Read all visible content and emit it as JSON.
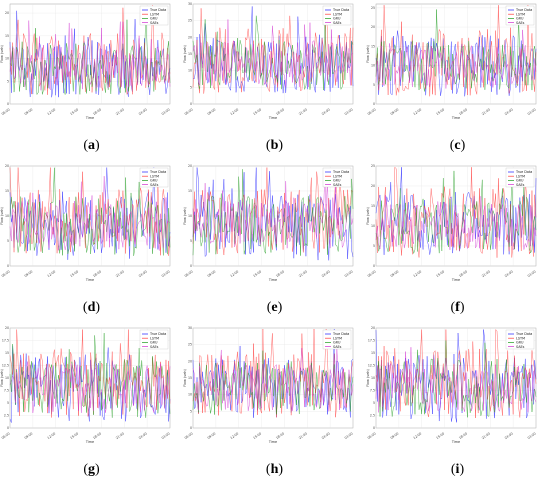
{
  "figure": {
    "panels": [
      {
        "caption_letter": "a",
        "legend": [
          "True Data",
          "LSTM",
          "GRU",
          "SAEs"
        ]
      },
      {
        "caption_letter": "b",
        "legend": [
          "True Data",
          "LSTM",
          "GRU",
          "SAEs"
        ]
      },
      {
        "caption_letter": "c",
        "legend": [
          "True Data",
          "LSTM",
          "GRU",
          "SAEs"
        ]
      },
      {
        "caption_letter": "d",
        "legend": [
          "True Data",
          "LSTM",
          "GRU",
          "SAEs"
        ]
      },
      {
        "caption_letter": "e",
        "legend": [
          "True Data",
          "LSTM",
          "GRU",
          "SAEs"
        ]
      },
      {
        "caption_letter": "f",
        "legend": [
          "True Data",
          "LSTM",
          "GRU",
          "SAEs"
        ]
      },
      {
        "caption_letter": "g",
        "legend": [
          "True Data",
          "LSTM",
          "GRU",
          "SAEs"
        ]
      },
      {
        "caption_letter": "h",
        "legend": [
          "True Data",
          "LSTM",
          "GRU",
          "SAEs"
        ]
      },
      {
        "caption_letter": "i",
        "legend": [
          "True Data",
          "LSTM",
          "GRU",
          "SAEs"
        ]
      }
    ]
  },
  "chart_data": [
    {
      "type": "line",
      "panel": "a",
      "xlabel": "Time",
      "ylabel": "Flow (veh)",
      "grid": true,
      "legend_position": "top-right",
      "x_tick_labels": [
        "06:00",
        "09:00",
        "12:00",
        "15:00",
        "18:00",
        "21:00",
        "24:00",
        "03:00"
      ],
      "y_ticks": [
        0,
        5,
        10,
        15,
        20
      ],
      "ylim": [
        0,
        22
      ],
      "series": [
        {
          "name": "True Data",
          "color": "#1f1fff",
          "seed": 11,
          "base": 8,
          "amp": 7
        },
        {
          "name": "LSTM",
          "color": "#ff3a3a",
          "seed": 12,
          "base": 9,
          "amp": 7
        },
        {
          "name": "GRU",
          "color": "#1a9a1a",
          "seed": 13,
          "base": 8,
          "amp": 6
        },
        {
          "name": "SAEs",
          "color": "#d030d0",
          "seed": 14,
          "base": 8,
          "amp": 5
        }
      ]
    },
    {
      "type": "line",
      "panel": "b",
      "xlabel": "Time",
      "ylabel": "Flow (veh)",
      "grid": true,
      "legend_position": "top-right",
      "x_tick_labels": [
        "06:00",
        "09:00",
        "12:00",
        "15:00",
        "18:00",
        "21:00",
        "24:00",
        "03:00"
      ],
      "y_ticks": [
        0,
        5,
        10,
        15,
        20,
        25,
        30
      ],
      "ylim": [
        0,
        30
      ],
      "series": [
        {
          "name": "True Data",
          "color": "#1f1fff",
          "seed": 21,
          "base": 12,
          "amp": 9
        },
        {
          "name": "LSTM",
          "color": "#ff3a3a",
          "seed": 22,
          "base": 13,
          "amp": 10
        },
        {
          "name": "GRU",
          "color": "#1a9a1a",
          "seed": 23,
          "base": 12,
          "amp": 8
        },
        {
          "name": "SAEs",
          "color": "#d030d0",
          "seed": 24,
          "base": 12,
          "amp": 7
        }
      ]
    },
    {
      "type": "line",
      "panel": "c",
      "xlabel": "Time",
      "ylabel": "Flow (veh)",
      "grid": true,
      "legend_position": "top-right",
      "x_tick_labels": [
        "06:00",
        "09:00",
        "12:00",
        "15:00",
        "18:00",
        "21:00",
        "24:00",
        "03:00"
      ],
      "y_ticks": [
        0,
        5,
        10,
        15,
        20,
        25
      ],
      "ylim": [
        0,
        26
      ],
      "series": [
        {
          "name": "True Data",
          "color": "#1f1fff",
          "seed": 31,
          "base": 10,
          "amp": 8
        },
        {
          "name": "LSTM",
          "color": "#ff3a3a",
          "seed": 32,
          "base": 11,
          "amp": 9
        },
        {
          "name": "GRU",
          "color": "#1a9a1a",
          "seed": 33,
          "base": 10,
          "amp": 7
        },
        {
          "name": "SAEs",
          "color": "#d030d0",
          "seed": 34,
          "base": 10,
          "amp": 6
        }
      ]
    },
    {
      "type": "line",
      "panel": "d",
      "xlabel": "Time",
      "ylabel": "Flow (veh)",
      "grid": true,
      "legend_position": "top-right",
      "x_tick_labels": [
        "06:00",
        "09:00",
        "12:00",
        "15:00",
        "18:00",
        "21:00",
        "24:00",
        "03:00"
      ],
      "y_ticks": [
        0,
        5,
        10,
        15,
        20
      ],
      "ylim": [
        0,
        20
      ],
      "series": [
        {
          "name": "True Data",
          "color": "#1f1fff",
          "seed": 41,
          "base": 8,
          "amp": 7
        },
        {
          "name": "LSTM",
          "color": "#ff3a3a",
          "seed": 42,
          "base": 9,
          "amp": 7
        },
        {
          "name": "GRU",
          "color": "#1a9a1a",
          "seed": 43,
          "base": 8,
          "amp": 6
        },
        {
          "name": "SAEs",
          "color": "#d030d0",
          "seed": 44,
          "base": 8,
          "amp": 5
        }
      ]
    },
    {
      "type": "line",
      "panel": "e",
      "xlabel": "Time",
      "ylabel": "Flow (veh)",
      "grid": true,
      "legend_position": "top-right",
      "x_tick_labels": [
        "06:00",
        "09:00",
        "12:00",
        "15:00",
        "18:00",
        "21:00",
        "24:00",
        "03:00"
      ],
      "y_ticks": [
        0,
        5,
        10,
        15,
        20
      ],
      "ylim": [
        0,
        20
      ],
      "series": [
        {
          "name": "True Data",
          "color": "#1f1fff",
          "seed": 51,
          "base": 8,
          "amp": 7
        },
        {
          "name": "LSTM",
          "color": "#ff3a3a",
          "seed": 52,
          "base": 9,
          "amp": 7
        },
        {
          "name": "GRU",
          "color": "#1a9a1a",
          "seed": 53,
          "base": 8,
          "amp": 6
        },
        {
          "name": "SAEs",
          "color": "#d030d0",
          "seed": 54,
          "base": 8,
          "amp": 5
        }
      ]
    },
    {
      "type": "line",
      "panel": "f",
      "xlabel": "Time",
      "ylabel": "Flow (veh)",
      "grid": true,
      "legend_position": "top-right",
      "x_tick_labels": [
        "06:00",
        "09:00",
        "12:00",
        "15:00",
        "18:00",
        "21:00",
        "24:00",
        "03:00"
      ],
      "y_ticks": [
        0,
        5,
        10,
        15,
        20,
        25
      ],
      "ylim": [
        0,
        25
      ],
      "series": [
        {
          "name": "True Data",
          "color": "#1f1fff",
          "seed": 61,
          "base": 10,
          "amp": 8
        },
        {
          "name": "LSTM",
          "color": "#ff3a3a",
          "seed": 62,
          "base": 11,
          "amp": 9
        },
        {
          "name": "GRU",
          "color": "#1a9a1a",
          "seed": 63,
          "base": 10,
          "amp": 7
        },
        {
          "name": "SAEs",
          "color": "#d030d0",
          "seed": 64,
          "base": 10,
          "amp": 6
        }
      ]
    },
    {
      "type": "line",
      "panel": "g",
      "xlabel": "Time",
      "ylabel": "Flow (veh)",
      "grid": true,
      "legend_position": "top-right",
      "x_tick_labels": [
        "06:00",
        "09:00",
        "12:00",
        "15:00",
        "18:00",
        "21:00",
        "24:00",
        "03:00"
      ],
      "y_ticks": [
        0,
        2.5,
        5,
        7.5,
        10,
        12.5,
        15,
        17.5,
        20
      ],
      "ylim": [
        0,
        20
      ],
      "series": [
        {
          "name": "True Data",
          "color": "#1f1fff",
          "seed": 71,
          "base": 8,
          "amp": 7
        },
        {
          "name": "LSTM",
          "color": "#ff3a3a",
          "seed": 72,
          "base": 9,
          "amp": 7
        },
        {
          "name": "GRU",
          "color": "#1a9a1a",
          "seed": 73,
          "base": 8,
          "amp": 6
        },
        {
          "name": "SAEs",
          "color": "#d030d0",
          "seed": 74,
          "base": 8,
          "amp": 5
        }
      ]
    },
    {
      "type": "line",
      "panel": "h",
      "xlabel": "Time",
      "ylabel": "Flow (veh)",
      "grid": true,
      "legend_position": "top-right",
      "x_tick_labels": [
        "06:00",
        "09:00",
        "12:00",
        "15:00",
        "18:00",
        "21:00",
        "24:00",
        "03:00"
      ],
      "y_ticks": [
        0,
        5,
        10,
        15,
        20,
        25,
        30
      ],
      "ylim": [
        0,
        30
      ],
      "series": [
        {
          "name": "True Data",
          "color": "#1f1fff",
          "seed": 81,
          "base": 12,
          "amp": 9
        },
        {
          "name": "LSTM",
          "color": "#ff3a3a",
          "seed": 82,
          "base": 13,
          "amp": 10
        },
        {
          "name": "GRU",
          "color": "#1a9a1a",
          "seed": 83,
          "base": 12,
          "amp": 8
        },
        {
          "name": "SAEs",
          "color": "#d030d0",
          "seed": 84,
          "base": 12,
          "amp": 7
        }
      ]
    },
    {
      "type": "line",
      "panel": "i",
      "xlabel": "Time",
      "ylabel": "Flow (veh)",
      "grid": true,
      "legend_position": "top-right",
      "x_tick_labels": [
        "06:00",
        "09:00",
        "12:00",
        "15:00",
        "18:00",
        "21:00",
        "24:00",
        "03:00"
      ],
      "y_ticks": [
        0,
        2.5,
        5,
        7.5,
        10,
        12.5,
        15,
        17.5,
        20
      ],
      "ylim": [
        0,
        20
      ],
      "series": [
        {
          "name": "True Data",
          "color": "#1f1fff",
          "seed": 91,
          "base": 8,
          "amp": 7
        },
        {
          "name": "LSTM",
          "color": "#ff3a3a",
          "seed": 92,
          "base": 9,
          "amp": 7
        },
        {
          "name": "GRU",
          "color": "#1a9a1a",
          "seed": 93,
          "base": 8,
          "amp": 6
        },
        {
          "name": "SAEs",
          "color": "#d030d0",
          "seed": 94,
          "base": 8,
          "amp": 5
        }
      ]
    }
  ]
}
